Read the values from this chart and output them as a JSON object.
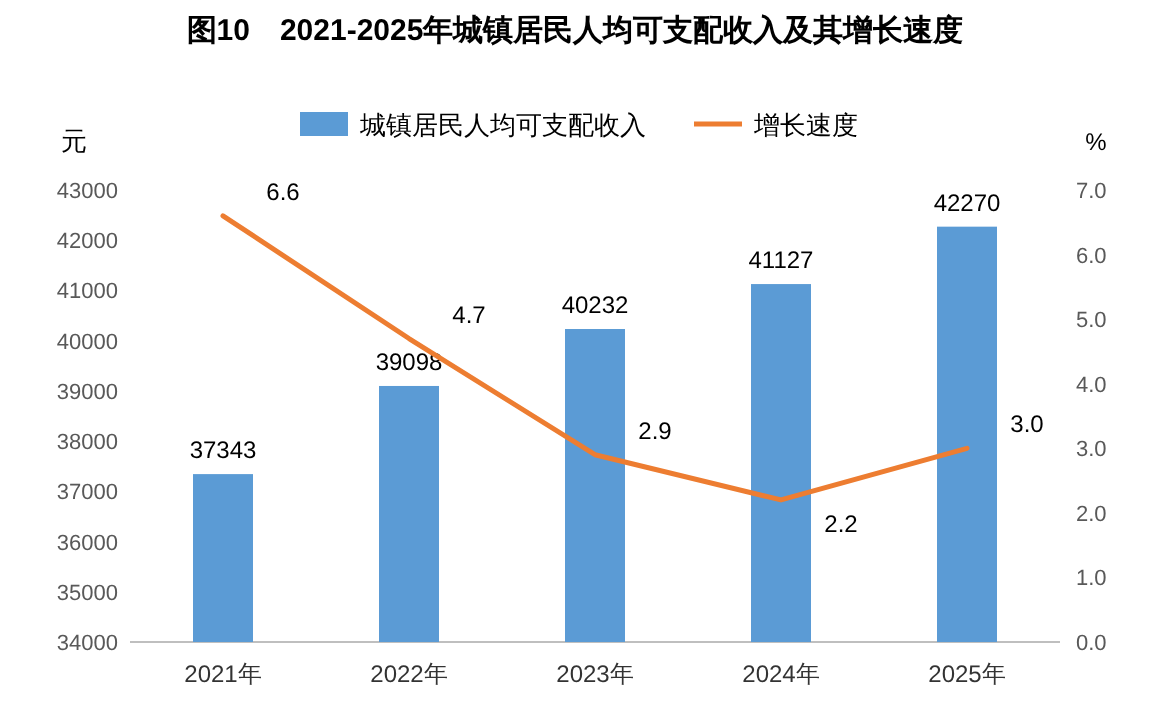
{
  "chart_data": {
    "type": "bar",
    "title": "图10　2021-2025年城镇居民人均可支配收入及其增长速度",
    "ylabel": "元",
    "y2label": "%",
    "categories": [
      "2021年",
      "2022年",
      "2023年",
      "2024年",
      "2025年"
    ],
    "series": [
      {
        "name": "城镇居民人均可支配收入",
        "color": "#5b9bd5",
        "values": [
          37343,
          39098,
          40232,
          41127,
          42270
        ],
        "value_labels": [
          "37343",
          "39098",
          "40232",
          "41127",
          "42270"
        ]
      },
      {
        "name": "增长速度",
        "type": "line",
        "axis": "y2",
        "color": "#ed7d31",
        "values": [
          6.6,
          4.7,
          2.9,
          2.2,
          3.0
        ],
        "value_labels": [
          "6.6",
          "4.7",
          "2.9",
          "2.2",
          "3.0"
        ]
      }
    ],
    "ylim": [
      34000,
      43000
    ],
    "yticks": [
      34000,
      35000,
      36000,
      37000,
      38000,
      39000,
      40000,
      41000,
      42000,
      43000
    ],
    "y2lim": [
      0,
      7
    ],
    "y2ticks": [
      {
        "value": 0,
        "label": "0.0"
      },
      {
        "value": 1,
        "label": "1.0"
      },
      {
        "value": 2,
        "label": "2.0"
      },
      {
        "value": 3,
        "label": "3.0"
      },
      {
        "value": 4,
        "label": "4.0"
      },
      {
        "value": 5,
        "label": "5.0"
      },
      {
        "value": 6,
        "label": "6.0"
      },
      {
        "value": 7,
        "label": "7.0"
      }
    ],
    "legend": "top",
    "grid": false,
    "marker": "none",
    "line_style": "solid"
  }
}
